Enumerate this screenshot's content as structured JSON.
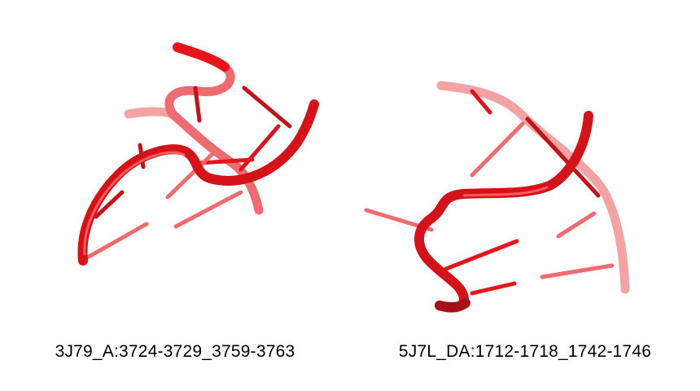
{
  "structures": [
    {
      "label": "3J79_A:3724-3729_3759-3763",
      "color": "#e8141c",
      "light": "#f06a6e"
    },
    {
      "label": "5J7L_DA:1712-1718_1742-1746",
      "color": "#e8141c",
      "light": "#f06a6e"
    }
  ]
}
